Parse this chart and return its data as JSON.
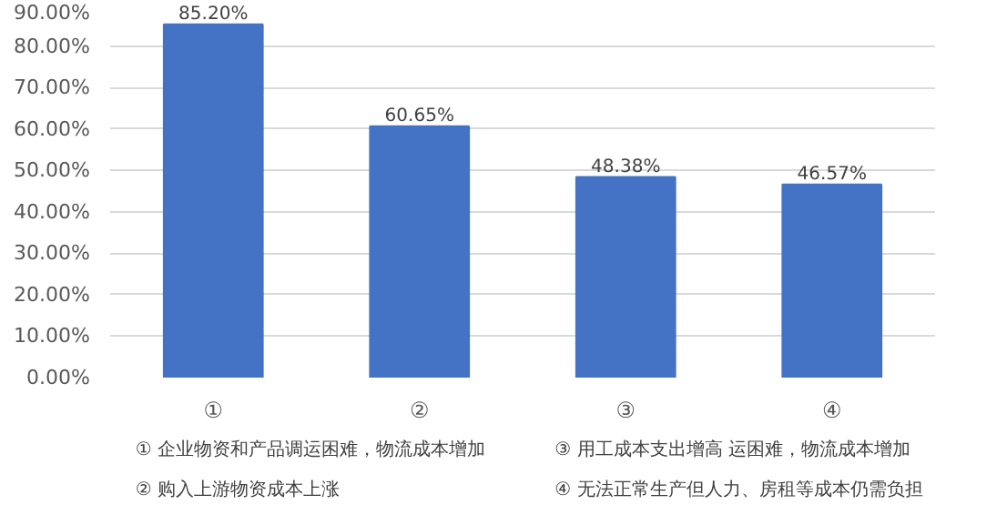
{
  "chart_data": {
    "type": "bar",
    "categories": [
      "①",
      "②",
      "③",
      "④"
    ],
    "values": [
      85.2,
      60.65,
      48.38,
      46.57
    ],
    "value_labels": [
      "85.20%",
      "60.65%",
      "48.38%",
      "46.57%"
    ],
    "color": "#4472c4",
    "ylim": [
      0,
      90
    ],
    "yticks": [
      {
        "value": 0,
        "label": "0.00%"
      },
      {
        "value": 10,
        "label": "10.00%"
      },
      {
        "value": 20,
        "label": "20.00%"
      },
      {
        "value": 30,
        "label": "30.00%"
      },
      {
        "value": 40,
        "label": "40.00%"
      },
      {
        "value": 50,
        "label": "50.00%"
      },
      {
        "value": 60,
        "label": "60.00%"
      },
      {
        "value": 70,
        "label": "70.00%"
      },
      {
        "value": 80,
        "label": "80.00%"
      },
      {
        "value": 90,
        "label": "90.00%"
      }
    ],
    "grid": "y",
    "annotations": [
      "① 企业物资和产品调运困难，物流成本增加",
      "② 购入上游物资成本上涨",
      "③ 用工成本支出增高 运困难，物流成本增加",
      "④ 无法正常生产但人力、房租等成本仍需负担"
    ]
  }
}
